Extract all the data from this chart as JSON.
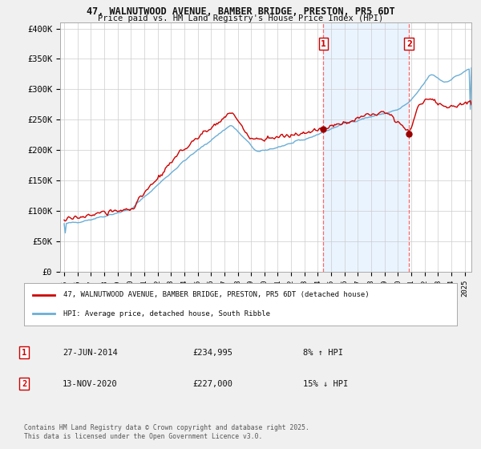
{
  "title1": "47, WALNUTWOOD AVENUE, BAMBER BRIDGE, PRESTON, PR5 6DT",
  "title2": "Price paid vs. HM Land Registry's House Price Index (HPI)",
  "legend1": "47, WALNUTWOOD AVENUE, BAMBER BRIDGE, PRESTON, PR5 6DT (detached house)",
  "legend2": "HPI: Average price, detached house, South Ribble",
  "annotation1_label": "1",
  "annotation1_date": "27-JUN-2014",
  "annotation1_price": "£234,995",
  "annotation1_hpi": "8% ↑ HPI",
  "annotation2_label": "2",
  "annotation2_date": "13-NOV-2020",
  "annotation2_price": "£227,000",
  "annotation2_hpi": "15% ↓ HPI",
  "footer": "Contains HM Land Registry data © Crown copyright and database right 2025.\nThis data is licensed under the Open Government Licence v3.0.",
  "house_color": "#cc0000",
  "hpi_color": "#6baed6",
  "hpi_line_color": "#6baed6",
  "shade_color": "#ddeeff",
  "marker_color": "#990000",
  "vline_color": "#ff6666",
  "ylim_min": 0,
  "ylim_max": 410000,
  "yticks": [
    0,
    50000,
    100000,
    150000,
    200000,
    250000,
    300000,
    350000,
    400000
  ],
  "ytick_labels": [
    "£0",
    "£50K",
    "£100K",
    "£150K",
    "£200K",
    "£250K",
    "£300K",
    "£350K",
    "£400K"
  ],
  "background_color": "#f0f0f0",
  "plot_bg_color": "#ffffff",
  "grid_color": "#cccccc"
}
